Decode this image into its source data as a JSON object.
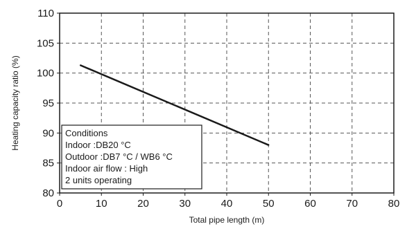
{
  "chart_data": {
    "type": "line",
    "title": "",
    "xlabel": "Total pipe length (m)",
    "ylabel": "Heating capacity ratio (%)",
    "xlim": [
      0,
      80
    ],
    "ylim": [
      80,
      110
    ],
    "xticks": [
      "0",
      "10",
      "20",
      "30",
      "40",
      "50",
      "60",
      "70",
      "80"
    ],
    "yticks": [
      "80",
      "85",
      "90",
      "95",
      "100",
      "105",
      "110"
    ],
    "grid": true,
    "series": [
      {
        "x": [
          5,
          50
        ],
        "y": [
          101.3,
          88.0
        ],
        "color": "#1a1a1a"
      }
    ],
    "annotation": {
      "lines": [
        "Conditions",
        "Indoor :DB20 °C",
        "Outdoor :DB7 °C / WB6 °C",
        "Indoor air flow : High",
        "2 units operating"
      ]
    }
  }
}
